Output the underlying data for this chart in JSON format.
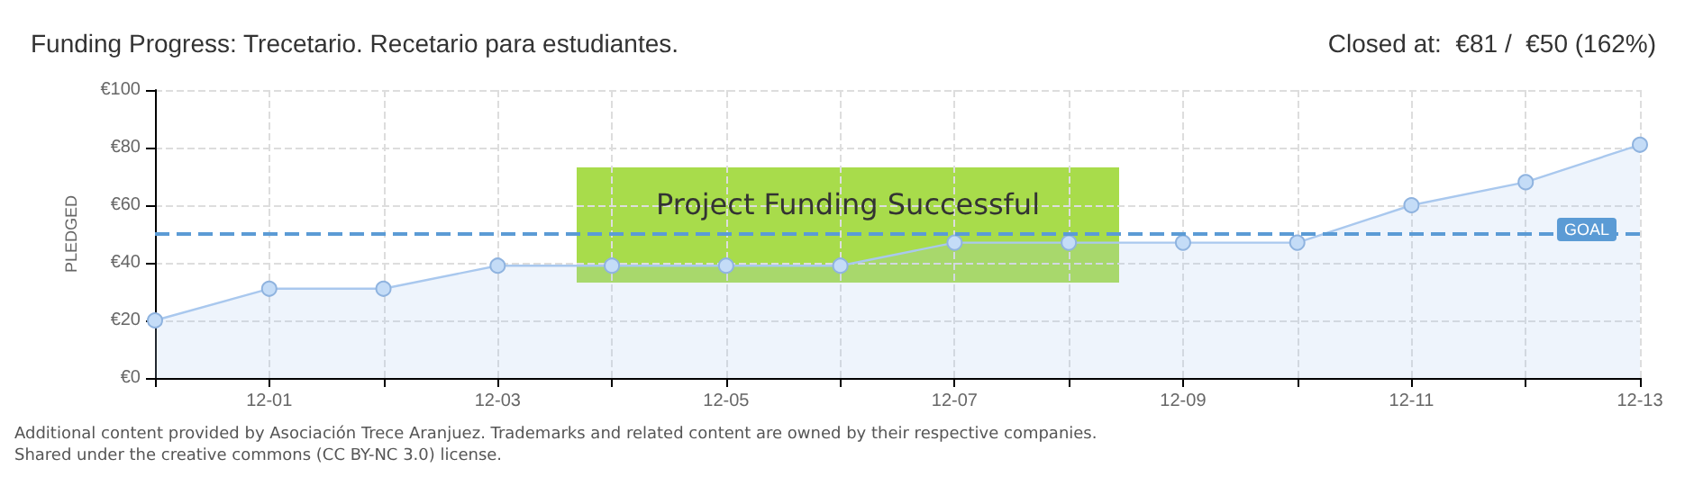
{
  "chart_data": {
    "type": "area",
    "title": "Funding Progress: Trecetario. Recetario para estudiantes.",
    "subtitle": "Closed at:  €81 /  €50 (162%)",
    "ylabel": "PLEDGED",
    "categories": [
      null,
      "12-01",
      null,
      "12-03",
      null,
      "12-05",
      null,
      "12-07",
      null,
      "12-09",
      null,
      "12-11",
      null,
      "12-13"
    ],
    "series": [
      {
        "color": "#a9c8ee",
        "values": [
          20,
          31,
          31,
          39,
          39,
          39,
          39,
          47,
          47,
          47,
          47,
          60,
          68,
          81
        ]
      }
    ],
    "ylim": [
      0,
      100
    ],
    "yticks": [
      {
        "value": 0,
        "label": "€0"
      },
      {
        "value": 20,
        "label": "€20"
      },
      {
        "value": 40,
        "label": "€40"
      },
      {
        "value": 60,
        "label": "€60"
      },
      {
        "value": 80,
        "label": "€80"
      },
      {
        "value": 100,
        "label": "€100"
      }
    ],
    "grid": true,
    "marker": "circle",
    "line_style": "solid",
    "ref_lines": [
      {
        "axis": "y",
        "value": 50,
        "label": "GOAL",
        "color": "#5b9bd5",
        "line_style": "dashed"
      }
    ],
    "annotations": [
      "Project Funding Successful",
      "Additional content provided by Asociación Trece Aranjuez. Trademarks and related content are owned by their respective companies.",
      "Shared under the creative commons (CC BY-NC 3.0) license."
    ]
  }
}
